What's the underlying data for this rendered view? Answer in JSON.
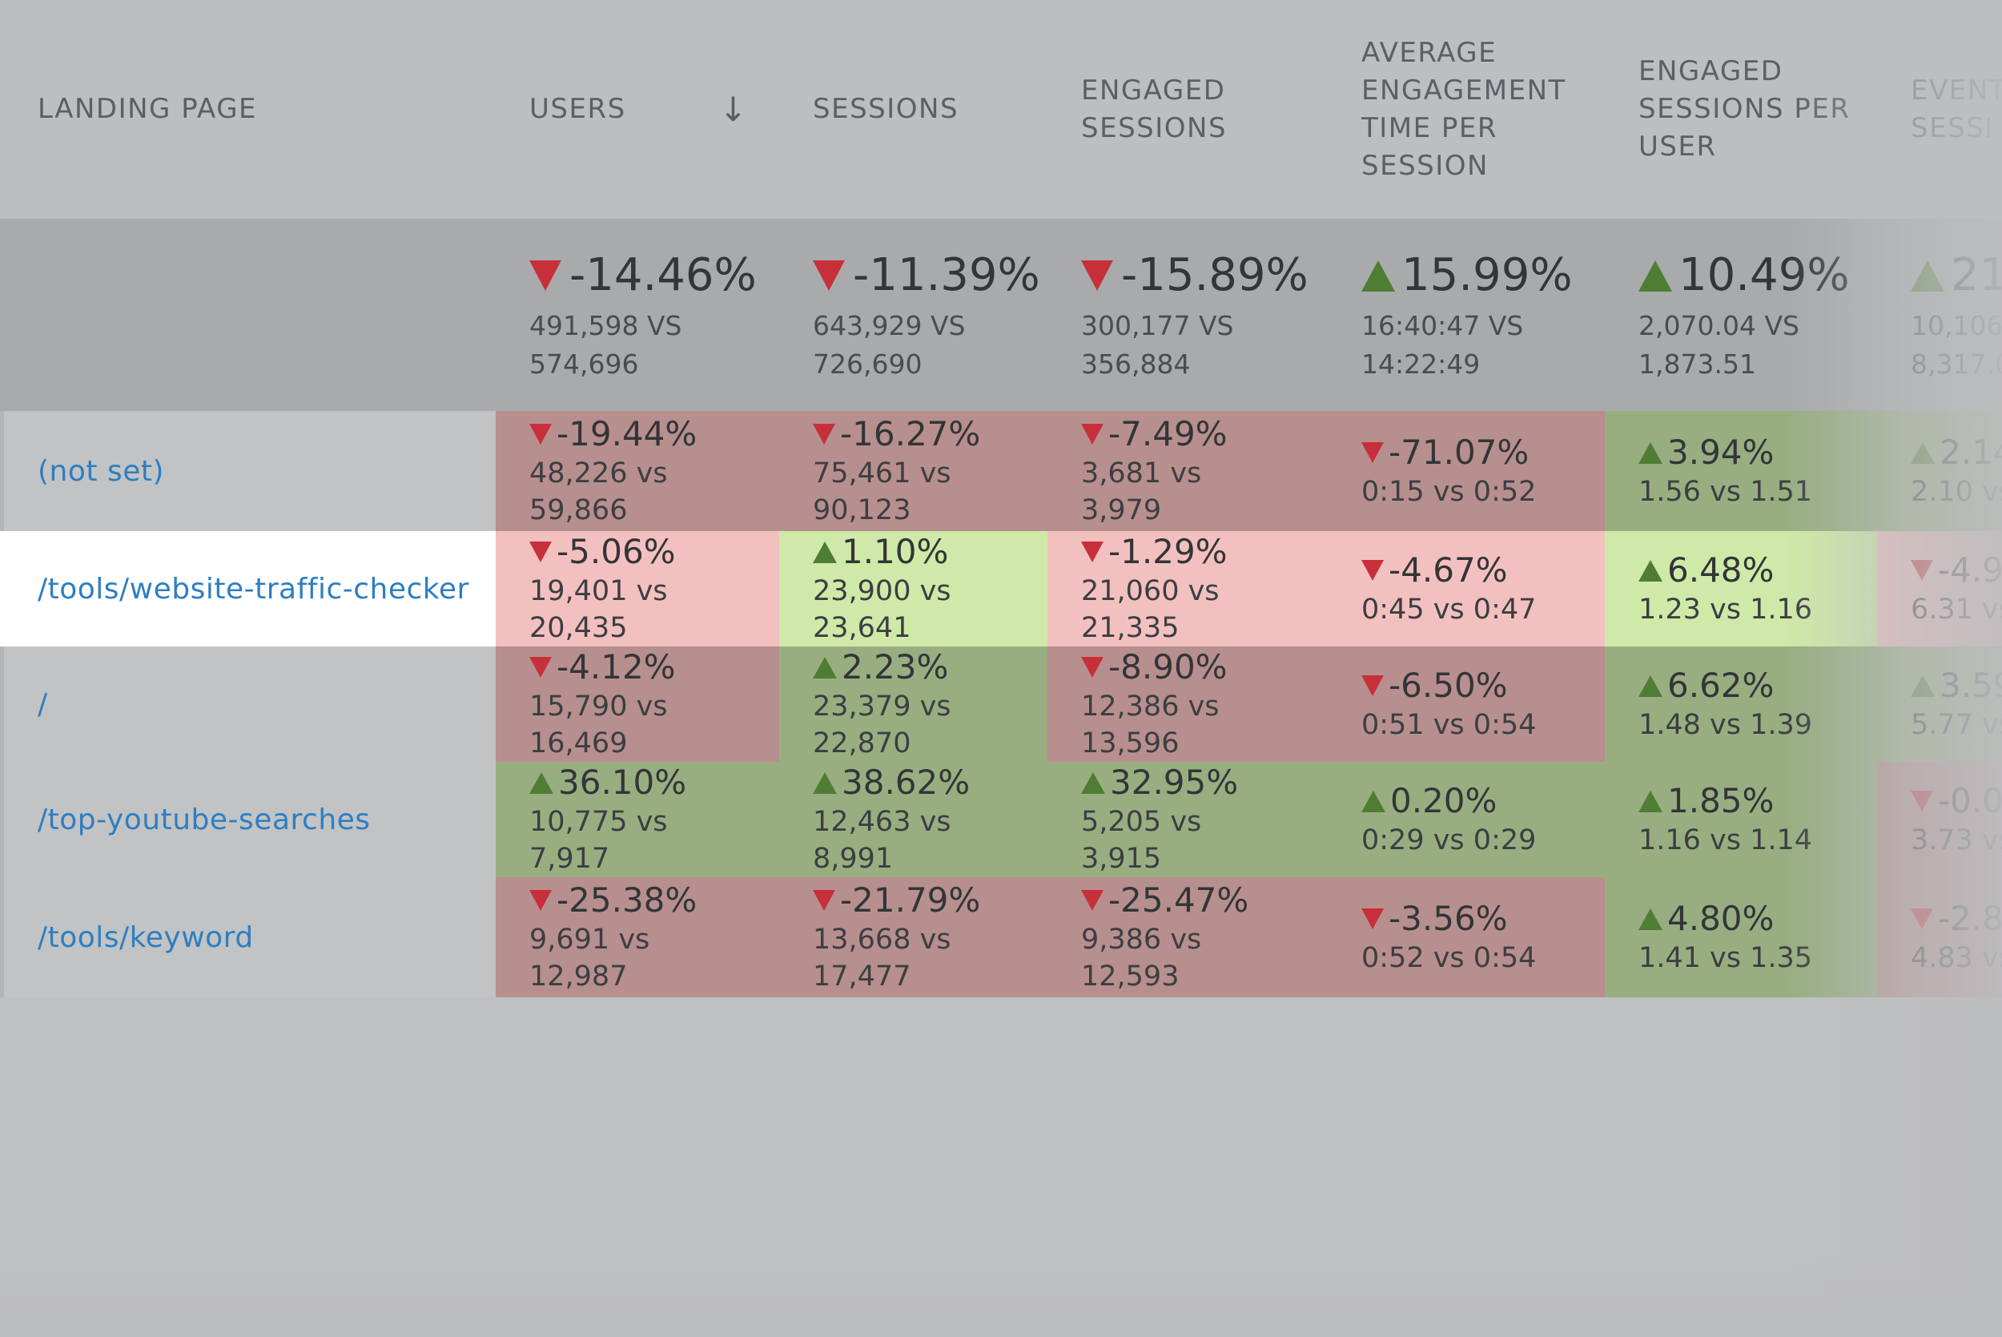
{
  "columns": [
    {
      "label": "LANDING PAGE"
    },
    {
      "label": "USERS"
    },
    {
      "label": "SESSIONS"
    },
    {
      "label": "ENGAGED\nSESSIONS"
    },
    {
      "label": "AVERAGE\nENGAGEMENT\nTIME PER\nSESSION"
    },
    {
      "label": "ENGAGED\nSESSIONS PER\nUSER"
    },
    {
      "label": "EVENT\nSESSI"
    }
  ],
  "sort": {
    "column": "USERS",
    "direction": "descending",
    "icon": "sort-down-arrow-icon"
  },
  "summary": [
    {
      "change": "-14.46%",
      "direction": "down",
      "current": "491,598 VS",
      "previous": "574,696"
    },
    {
      "change": "-11.39%",
      "direction": "down",
      "current": "643,929 VS",
      "previous": "726,690"
    },
    {
      "change": "-15.89%",
      "direction": "down",
      "current": "300,177 VS",
      "previous": "356,884"
    },
    {
      "change": "15.99%",
      "direction": "up",
      "current": "16:40:47 VS",
      "previous": "14:22:49"
    },
    {
      "change": "10.49%",
      "direction": "up",
      "current": "2,070.04 VS",
      "previous": "1,873.51"
    },
    {
      "change": "21",
      "direction": "up",
      "current": "10,106",
      "previous": "8,317.0"
    }
  ],
  "rows": [
    {
      "page": "(not set)",
      "cells": [
        {
          "change": "-19.44%",
          "direction": "down",
          "compare": "48,226 vs 59,866"
        },
        {
          "change": "-16.27%",
          "direction": "down",
          "compare": "75,461 vs 90,123"
        },
        {
          "change": "-7.49%",
          "direction": "down",
          "compare": "3,681 vs 3,979"
        },
        {
          "change": "-71.07%",
          "direction": "down",
          "compare": "0:15 vs 0:52"
        },
        {
          "change": "3.94%",
          "direction": "up",
          "compare": "1.56 vs 1.51"
        },
        {
          "change": "2.14",
          "direction": "up",
          "compare": "2.10 vs"
        }
      ]
    },
    {
      "page": "/tools/website-traffic-checker",
      "cells": [
        {
          "change": "-5.06%",
          "direction": "down",
          "compare": "19,401 vs 20,435"
        },
        {
          "change": "1.10%",
          "direction": "up",
          "compare": "23,900 vs 23,641"
        },
        {
          "change": "-1.29%",
          "direction": "down",
          "compare": "21,060 vs 21,335"
        },
        {
          "change": "-4.67%",
          "direction": "down",
          "compare": "0:45 vs 0:47"
        },
        {
          "change": "6.48%",
          "direction": "up",
          "compare": "1.23 vs 1.16"
        },
        {
          "change": "-4.9",
          "direction": "down",
          "compare": "6.31 vs"
        }
      ]
    },
    {
      "page": "/",
      "cells": [
        {
          "change": "-4.12%",
          "direction": "down",
          "compare": "15,790 vs 16,469"
        },
        {
          "change": "2.23%",
          "direction": "up",
          "compare": "23,379 vs 22,870"
        },
        {
          "change": "-8.90%",
          "direction": "down",
          "compare": "12,386 vs 13,596"
        },
        {
          "change": "-6.50%",
          "direction": "down",
          "compare": "0:51 vs 0:54"
        },
        {
          "change": "6.62%",
          "direction": "up",
          "compare": "1.48 vs 1.39"
        },
        {
          "change": "3.59",
          "direction": "up",
          "compare": "5.77 vs"
        }
      ]
    },
    {
      "page": "/top-youtube-searches",
      "cells": [
        {
          "change": "36.10%",
          "direction": "up",
          "compare": "10,775 vs 7,917"
        },
        {
          "change": "38.62%",
          "direction": "up",
          "compare": "12,463 vs 8,991"
        },
        {
          "change": "32.95%",
          "direction": "up",
          "compare": "5,205 vs 3,915"
        },
        {
          "change": "0.20%",
          "direction": "up",
          "compare": "0:29 vs 0:29"
        },
        {
          "change": "1.85%",
          "direction": "up",
          "compare": "1.16 vs 1.14"
        },
        {
          "change": "-0.0",
          "direction": "down",
          "compare": "3.73 vs"
        }
      ]
    },
    {
      "page": "/tools/keyword",
      "cells": [
        {
          "change": "-25.38%",
          "direction": "down",
          "compare": "9,691 vs 12,987"
        },
        {
          "change": "-21.79%",
          "direction": "down",
          "compare": "13,668 vs 17,477"
        },
        {
          "change": "-25.47%",
          "direction": "down",
          "compare": "9,386 vs 12,593"
        },
        {
          "change": "-3.56%",
          "direction": "down",
          "compare": "0:52 vs 0:54"
        },
        {
          "change": "4.80%",
          "direction": "up",
          "compare": "1.41 vs 1.35"
        },
        {
          "change": "-2.8",
          "direction": "down",
          "compare": "4.83 vs"
        }
      ]
    }
  ],
  "colors": {
    "negative_cell": "#b78f8e",
    "positive_cell": "#98ae81",
    "negative_cell_highlight": "#f3c0c0",
    "positive_cell_highlight": "#cfe9a8",
    "down_arrow": "#c7303a",
    "up_arrow": "#4f7d34",
    "link": "#2e7ec1"
  }
}
